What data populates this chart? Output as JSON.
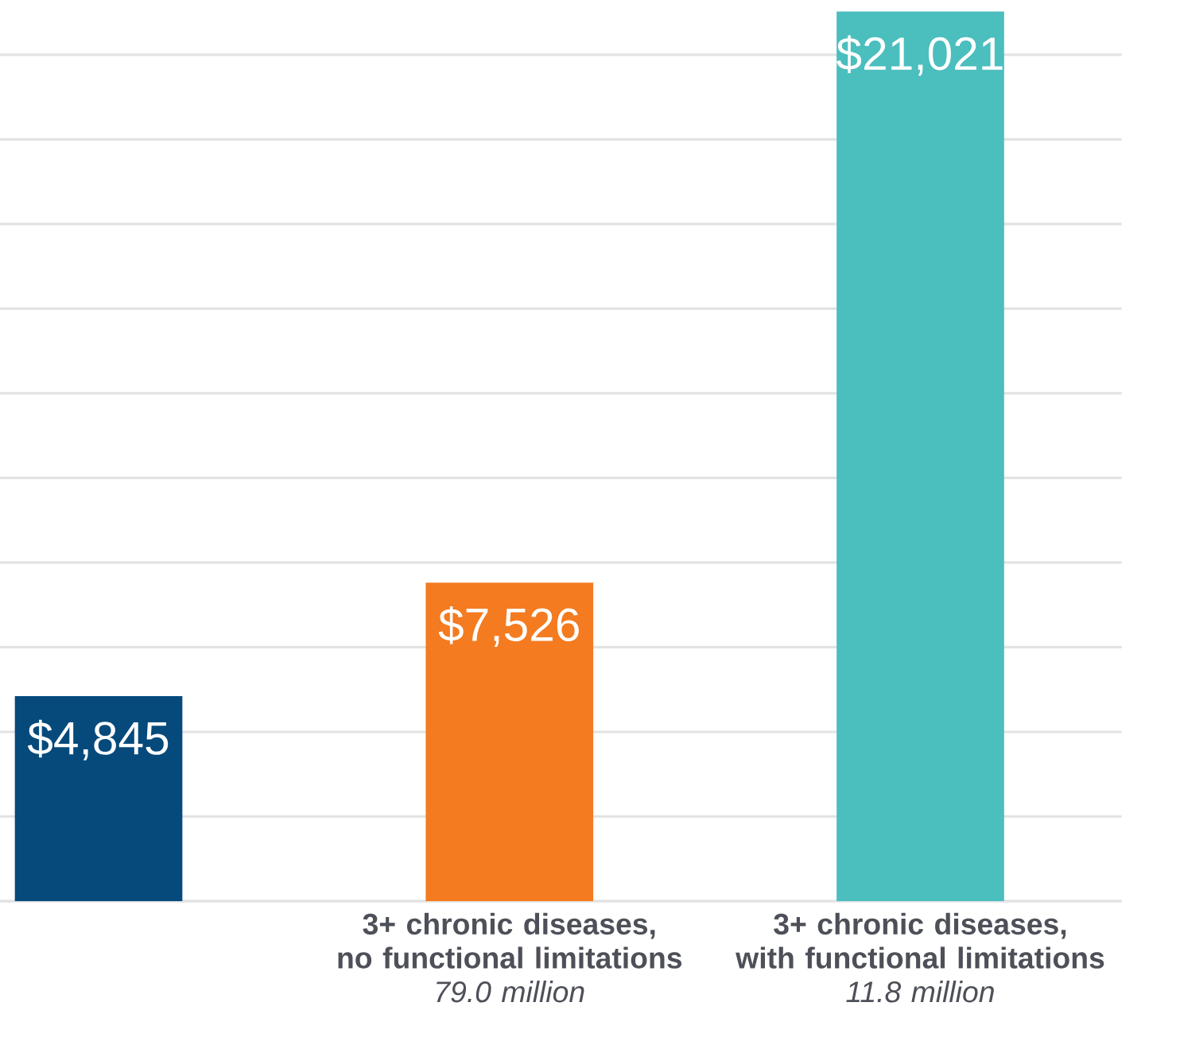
{
  "chart_data": {
    "type": "bar",
    "categories": [
      null,
      "**3+ chronic diseases,\nno functional limitations**\n*79.0 million*",
      "**3+ chronic diseases,\nwith functional limitations**\n*11.8 million*"
    ],
    "values": [
      4845,
      7526,
      21021
    ],
    "colors": [
      "#064a7c",
      "#f47b20",
      "#4bbebe"
    ],
    "value_labels": [
      "$4,845",
      "$7,526",
      "$21,021"
    ],
    "grid": "y",
    "tick_labels": "x"
  }
}
